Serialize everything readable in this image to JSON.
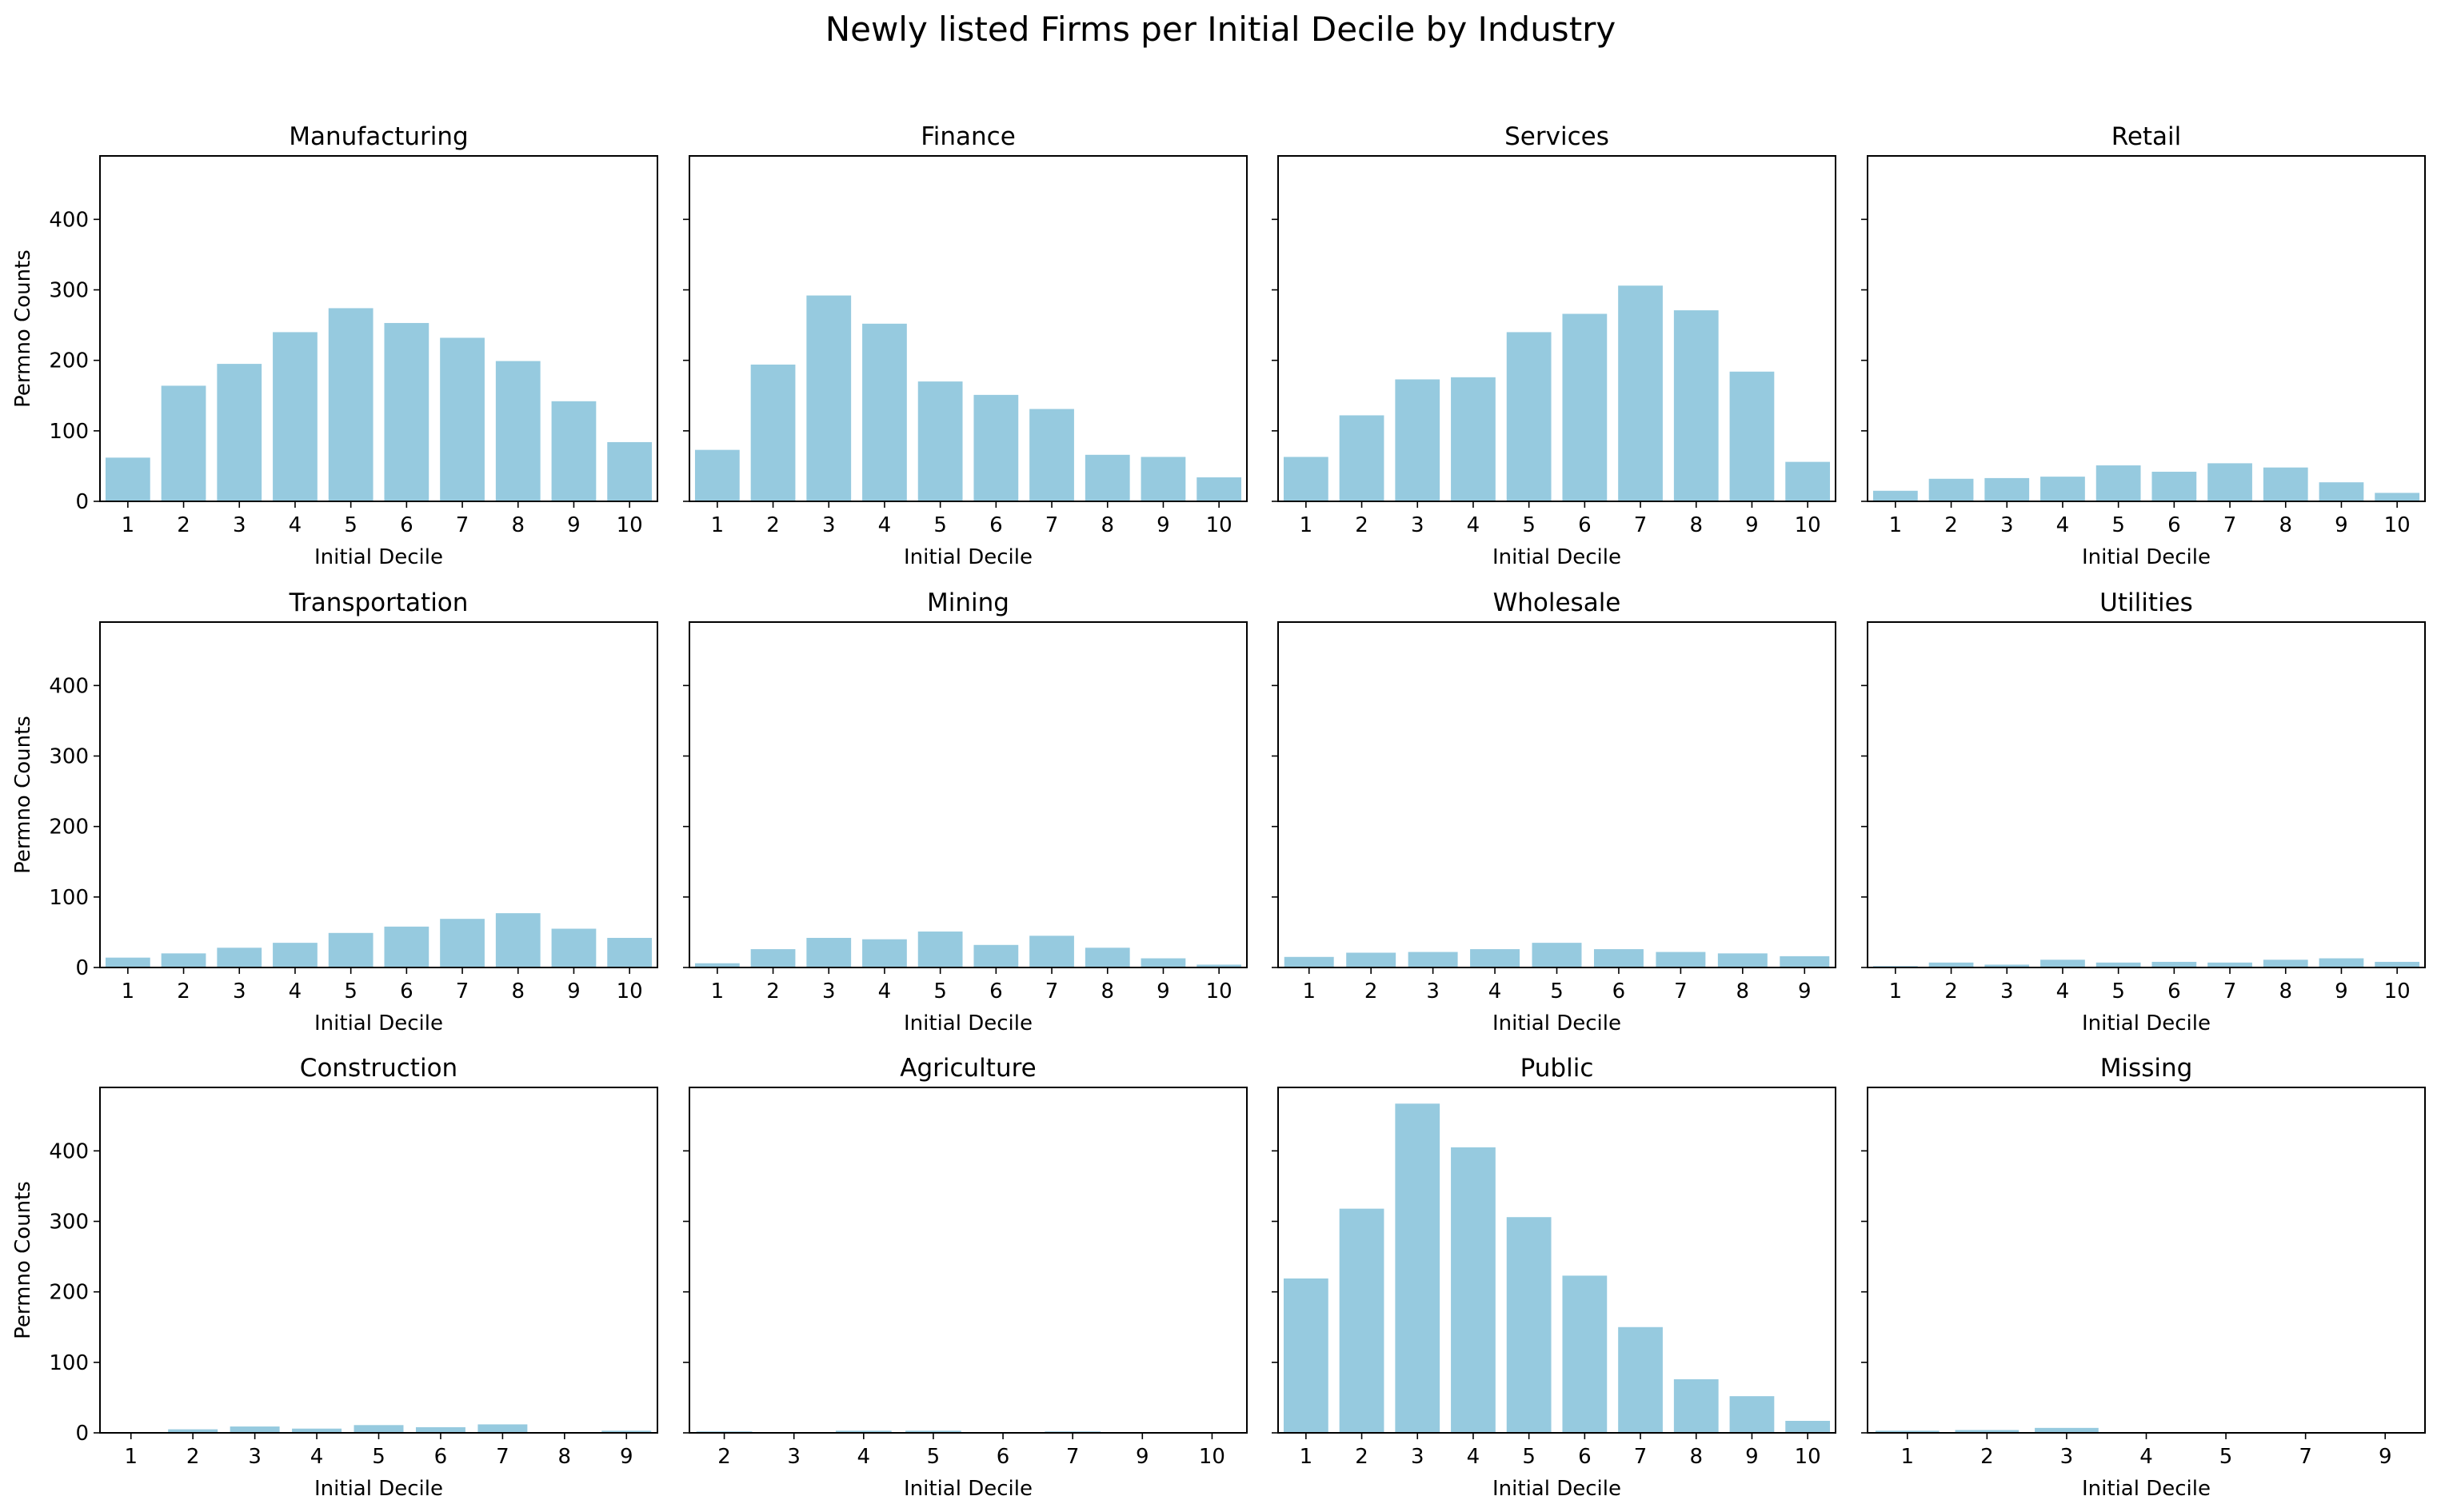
{
  "figure": {
    "title": "Newly listed Firms per Initial Decile by Industry",
    "bar_color": "#96cadf"
  },
  "chart_data": [
    {
      "type": "bar",
      "title": "Manufacturing",
      "xlabel": "Initial Decile",
      "ylabel": "Permno Counts",
      "categories": [
        "1",
        "2",
        "3",
        "4",
        "5",
        "6",
        "7",
        "8",
        "9",
        "10"
      ],
      "values": [
        62,
        164,
        195,
        240,
        274,
        253,
        232,
        199,
        142,
        84
      ],
      "ylim": [
        0,
        490
      ],
      "yticks": [
        0,
        100,
        200,
        300,
        400
      ]
    },
    {
      "type": "bar",
      "title": "Finance",
      "xlabel": "Initial Decile",
      "ylabel": "",
      "categories": [
        "1",
        "2",
        "3",
        "4",
        "5",
        "6",
        "7",
        "8",
        "9",
        "10"
      ],
      "values": [
        73,
        194,
        292,
        252,
        170,
        151,
        131,
        66,
        63,
        34
      ],
      "ylim": [
        0,
        490
      ],
      "yticks": [
        0,
        100,
        200,
        300,
        400
      ]
    },
    {
      "type": "bar",
      "title": "Services",
      "xlabel": "Initial Decile",
      "ylabel": "",
      "categories": [
        "1",
        "2",
        "3",
        "4",
        "5",
        "6",
        "7",
        "8",
        "9",
        "10"
      ],
      "values": [
        63,
        122,
        173,
        176,
        240,
        266,
        306,
        271,
        184,
        56
      ],
      "ylim": [
        0,
        490
      ],
      "yticks": [
        0,
        100,
        200,
        300,
        400
      ]
    },
    {
      "type": "bar",
      "title": "Retail",
      "xlabel": "Initial Decile",
      "ylabel": "",
      "categories": [
        "1",
        "2",
        "3",
        "4",
        "5",
        "6",
        "7",
        "8",
        "9",
        "10"
      ],
      "values": [
        15,
        32,
        33,
        35,
        51,
        42,
        54,
        48,
        27,
        12
      ],
      "ylim": [
        0,
        490
      ],
      "yticks": [
        0,
        100,
        200,
        300,
        400
      ]
    },
    {
      "type": "bar",
      "title": "Transportation",
      "xlabel": "Initial Decile",
      "ylabel": "Permno Counts",
      "categories": [
        "1",
        "2",
        "3",
        "4",
        "5",
        "6",
        "7",
        "8",
        "9",
        "10"
      ],
      "values": [
        14,
        20,
        28,
        35,
        49,
        58,
        69,
        77,
        55,
        42
      ],
      "ylim": [
        0,
        490
      ],
      "yticks": [
        0,
        100,
        200,
        300,
        400
      ]
    },
    {
      "type": "bar",
      "title": "Mining",
      "xlabel": "Initial Decile",
      "ylabel": "",
      "categories": [
        "1",
        "2",
        "3",
        "4",
        "5",
        "6",
        "7",
        "8",
        "9",
        "10"
      ],
      "values": [
        6,
        26,
        42,
        40,
        51,
        32,
        45,
        28,
        13,
        4
      ],
      "ylim": [
        0,
        490
      ],
      "yticks": [
        0,
        100,
        200,
        300,
        400
      ]
    },
    {
      "type": "bar",
      "title": "Wholesale",
      "xlabel": "Initial Decile",
      "ylabel": "",
      "categories": [
        "1",
        "2",
        "3",
        "4",
        "5",
        "6",
        "7",
        "8",
        "9"
      ],
      "values": [
        15,
        21,
        22,
        26,
        35,
        26,
        22,
        20,
        16
      ],
      "ylim": [
        0,
        490
      ],
      "yticks": [
        0,
        100,
        200,
        300,
        400
      ]
    },
    {
      "type": "bar",
      "title": "Utilities",
      "xlabel": "Initial Decile",
      "ylabel": "",
      "categories": [
        "1",
        "2",
        "3",
        "4",
        "5",
        "6",
        "7",
        "8",
        "9",
        "10"
      ],
      "values": [
        2,
        7,
        4,
        11,
        7,
        8,
        7,
        11,
        13,
        8
      ],
      "ylim": [
        0,
        490
      ],
      "yticks": [
        0,
        100,
        200,
        300,
        400
      ]
    },
    {
      "type": "bar",
      "title": "Construction",
      "xlabel": "Initial Decile",
      "ylabel": "Permno Counts",
      "categories": [
        "1",
        "2",
        "3",
        "4",
        "5",
        "6",
        "7",
        "8",
        "9"
      ],
      "values": [
        1,
        5,
        9,
        6,
        11,
        8,
        12,
        1,
        3
      ],
      "ylim": [
        0,
        490
      ],
      "yticks": [
        0,
        100,
        200,
        300,
        400
      ]
    },
    {
      "type": "bar",
      "title": "Agriculture",
      "xlabel": "Initial Decile",
      "ylabel": "",
      "categories": [
        "2",
        "3",
        "4",
        "5",
        "6",
        "7",
        "9",
        "10"
      ],
      "values": [
        2,
        1,
        3,
        3,
        1,
        2,
        1,
        1
      ],
      "ylim": [
        0,
        490
      ],
      "yticks": [
        0,
        100,
        200,
        300,
        400
      ]
    },
    {
      "type": "bar",
      "title": "Public",
      "xlabel": "Initial Decile",
      "ylabel": "",
      "categories": [
        "1",
        "2",
        "3",
        "4",
        "5",
        "6",
        "7",
        "8",
        "9",
        "10"
      ],
      "values": [
        219,
        318,
        467,
        405,
        306,
        223,
        150,
        76,
        52,
        17
      ],
      "ylim": [
        0,
        490
      ],
      "yticks": [
        0,
        100,
        200,
        300,
        400
      ]
    },
    {
      "type": "bar",
      "title": "Missing",
      "xlabel": "Initial Decile",
      "ylabel": "",
      "categories": [
        "1",
        "2",
        "3",
        "4",
        "5",
        "7",
        "9"
      ],
      "values": [
        3,
        4,
        7,
        1,
        1,
        1,
        1
      ],
      "ylim": [
        0,
        490
      ],
      "yticks": [
        0,
        100,
        200,
        300,
        400
      ]
    }
  ]
}
